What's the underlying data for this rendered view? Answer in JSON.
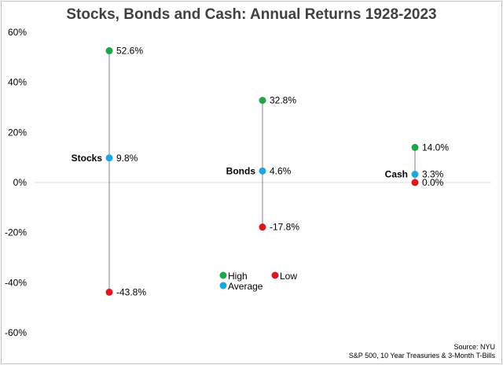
{
  "chart_data": {
    "type": "scatter",
    "title": "Stocks, Bonds and Cash: Annual Returns 1928-2023",
    "ylim": [
      -60,
      60
    ],
    "yticks": [
      60,
      40,
      20,
      0,
      -20,
      -40,
      -60
    ],
    "ytick_labels": [
      "60%",
      "40%",
      "20%",
      "0%",
      "-20%",
      "-40%",
      "-60%"
    ],
    "categories": [
      "Stocks",
      "Bonds",
      "Cash"
    ],
    "series": [
      {
        "name": "High",
        "color": "#1fa64b",
        "values": [
          52.6,
          32.8,
          14.0
        ],
        "labels": [
          "52.6%",
          "32.8%",
          "14.0%"
        ]
      },
      {
        "name": "Average",
        "color": "#1ba8e0",
        "values": [
          9.8,
          4.6,
          3.3
        ],
        "labels": [
          "9.8%",
          "4.6%",
          "3.3%"
        ]
      },
      {
        "name": "Low",
        "color": "#e0141e",
        "values": [
          -43.8,
          -17.8,
          0.0
        ],
        "labels": [
          "-43.8%",
          "-17.8%",
          "0.0%"
        ]
      }
    ],
    "legend": {
      "placement": "bottom-center",
      "items": [
        "High",
        "Low",
        "Average"
      ]
    },
    "source_lines": [
      "Source: NYU",
      "S&P 500, 10 Year Treasuries & 3-Month T-Bills"
    ]
  }
}
